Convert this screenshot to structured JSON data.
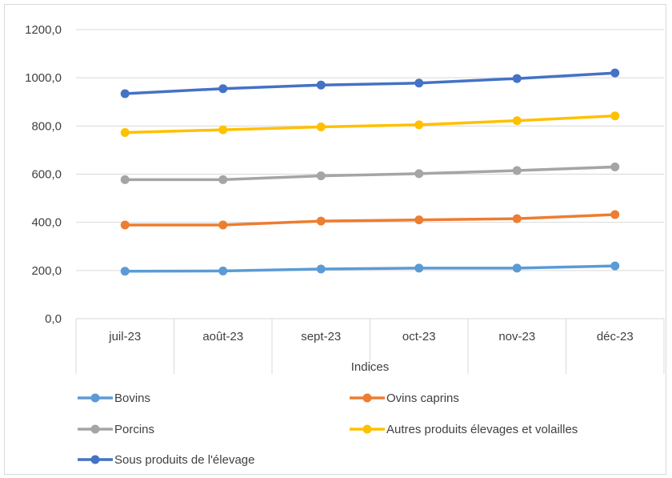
{
  "chart_data": {
    "type": "line",
    "title": "",
    "xlabel": "Indices",
    "ylabel": "",
    "categories": [
      "juil-23",
      "août-23",
      "sept-23",
      "oct-23",
      "nov-23",
      "déc-23"
    ],
    "ylim": [
      0,
      1200
    ],
    "y_ticks": [
      "0,0",
      "200,0",
      "400,0",
      "600,0",
      "800,0",
      "1000,0",
      "1200,0"
    ],
    "grid": "horizontal",
    "legend_position": "bottom",
    "series": [
      {
        "name": "Bovins",
        "color": "#5B9BD5",
        "values": [
          197,
          198,
          206,
          210,
          210,
          219
        ]
      },
      {
        "name": "Ovins caprins",
        "color": "#ED7D31",
        "values": [
          389,
          389,
          405,
          410,
          415,
          432
        ]
      },
      {
        "name": "Porcins",
        "color": "#A5A5A5",
        "values": [
          577,
          577,
          593,
          602,
          615,
          630
        ]
      },
      {
        "name": "Autres produits élevages et volailles",
        "color": "#FFC000",
        "values": [
          773,
          784,
          796,
          805,
          822,
          842
        ]
      },
      {
        "name": "Sous produits de l'élevage",
        "color": "#4472C4",
        "values": [
          934,
          955,
          970,
          978,
          997,
          1020
        ]
      }
    ]
  }
}
